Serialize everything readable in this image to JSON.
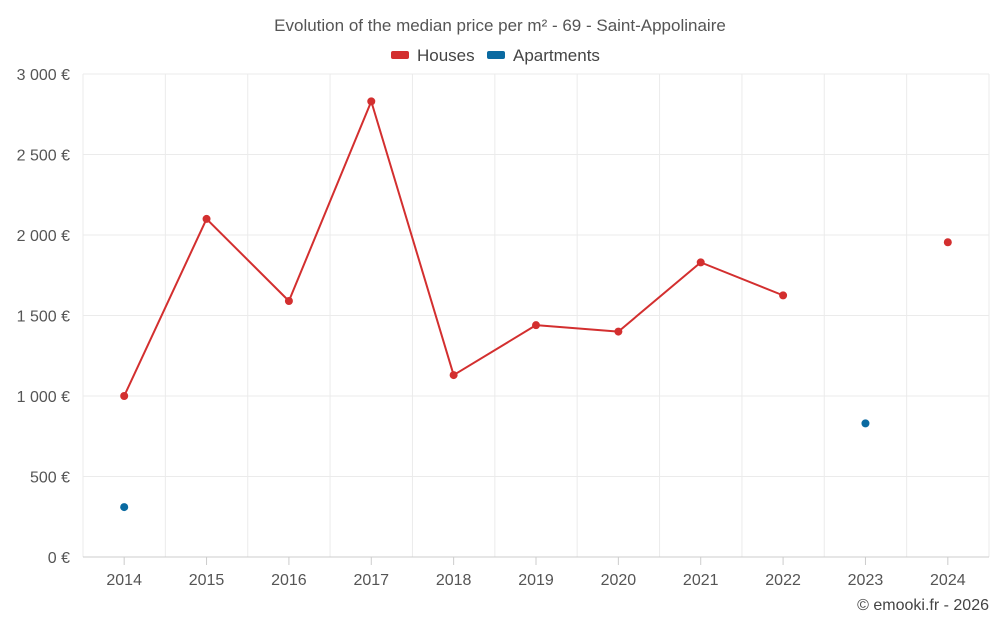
{
  "chart_data": {
    "type": "line",
    "title": "Evolution of the median price per m² - 69 - Saint-Appolinaire",
    "categories": [
      "2014",
      "2015",
      "2016",
      "2017",
      "2018",
      "2019",
      "2020",
      "2021",
      "2022",
      "2023",
      "2024"
    ],
    "series": [
      {
        "name": "Houses",
        "color": "#d32f2f",
        "values": [
          1000,
          2100,
          1590,
          2830,
          1130,
          1440,
          1400,
          1830,
          1625,
          null,
          1955
        ]
      },
      {
        "name": "Apartments",
        "color": "#0a6aa1",
        "values": [
          310,
          null,
          null,
          null,
          null,
          null,
          null,
          null,
          null,
          830,
          null
        ]
      }
    ],
    "ylim": [
      0,
      3000
    ],
    "yticks": [
      0,
      500,
      1000,
      1500,
      2000,
      2500,
      3000
    ],
    "ytick_labels": [
      "0 €",
      "500 €",
      "1 000 €",
      "1 500 €",
      "2 000 €",
      "2 500 €",
      "3 000 €"
    ],
    "grid": true,
    "legend_position": "top-center",
    "xlabel": "",
    "ylabel": ""
  },
  "credit": "© emooki.fr - 2026"
}
